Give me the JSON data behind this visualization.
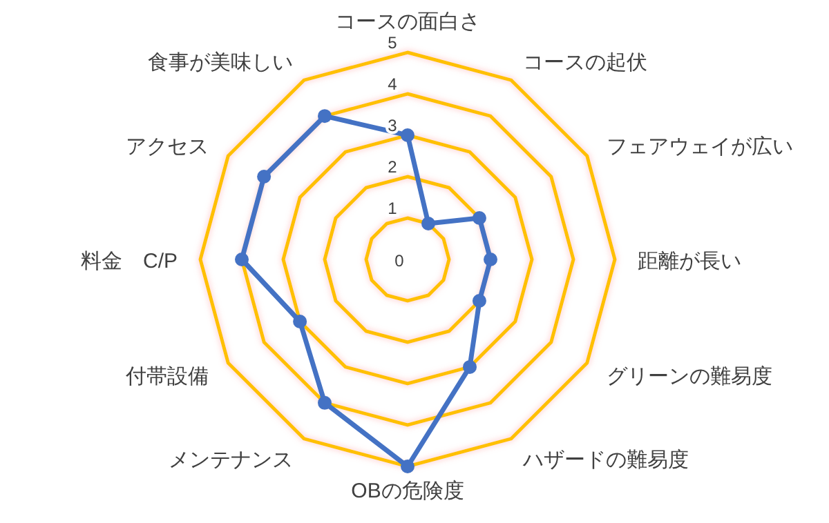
{
  "chart_data": {
    "type": "radar",
    "categories": [
      "コースの面白さ",
      "コースの起伏",
      "フェアウェイが広い",
      "距離が長い",
      "グリーンの難易度",
      "ハザードの難易度",
      "OBの危険度",
      "メンテナンス",
      "付帯設備",
      "料金　C/P",
      "アクセス",
      "食事が美味しい"
    ],
    "series": [
      {
        "color": "#4472c4",
        "values": [
          3,
          1,
          2,
          2,
          2,
          3,
          5,
          4,
          3,
          4,
          4,
          4
        ]
      }
    ],
    "ylim": [
      0,
      5
    ],
    "yticks": [
      0,
      1,
      2,
      3,
      4,
      5
    ],
    "grid": true,
    "marker": "circle"
  }
}
